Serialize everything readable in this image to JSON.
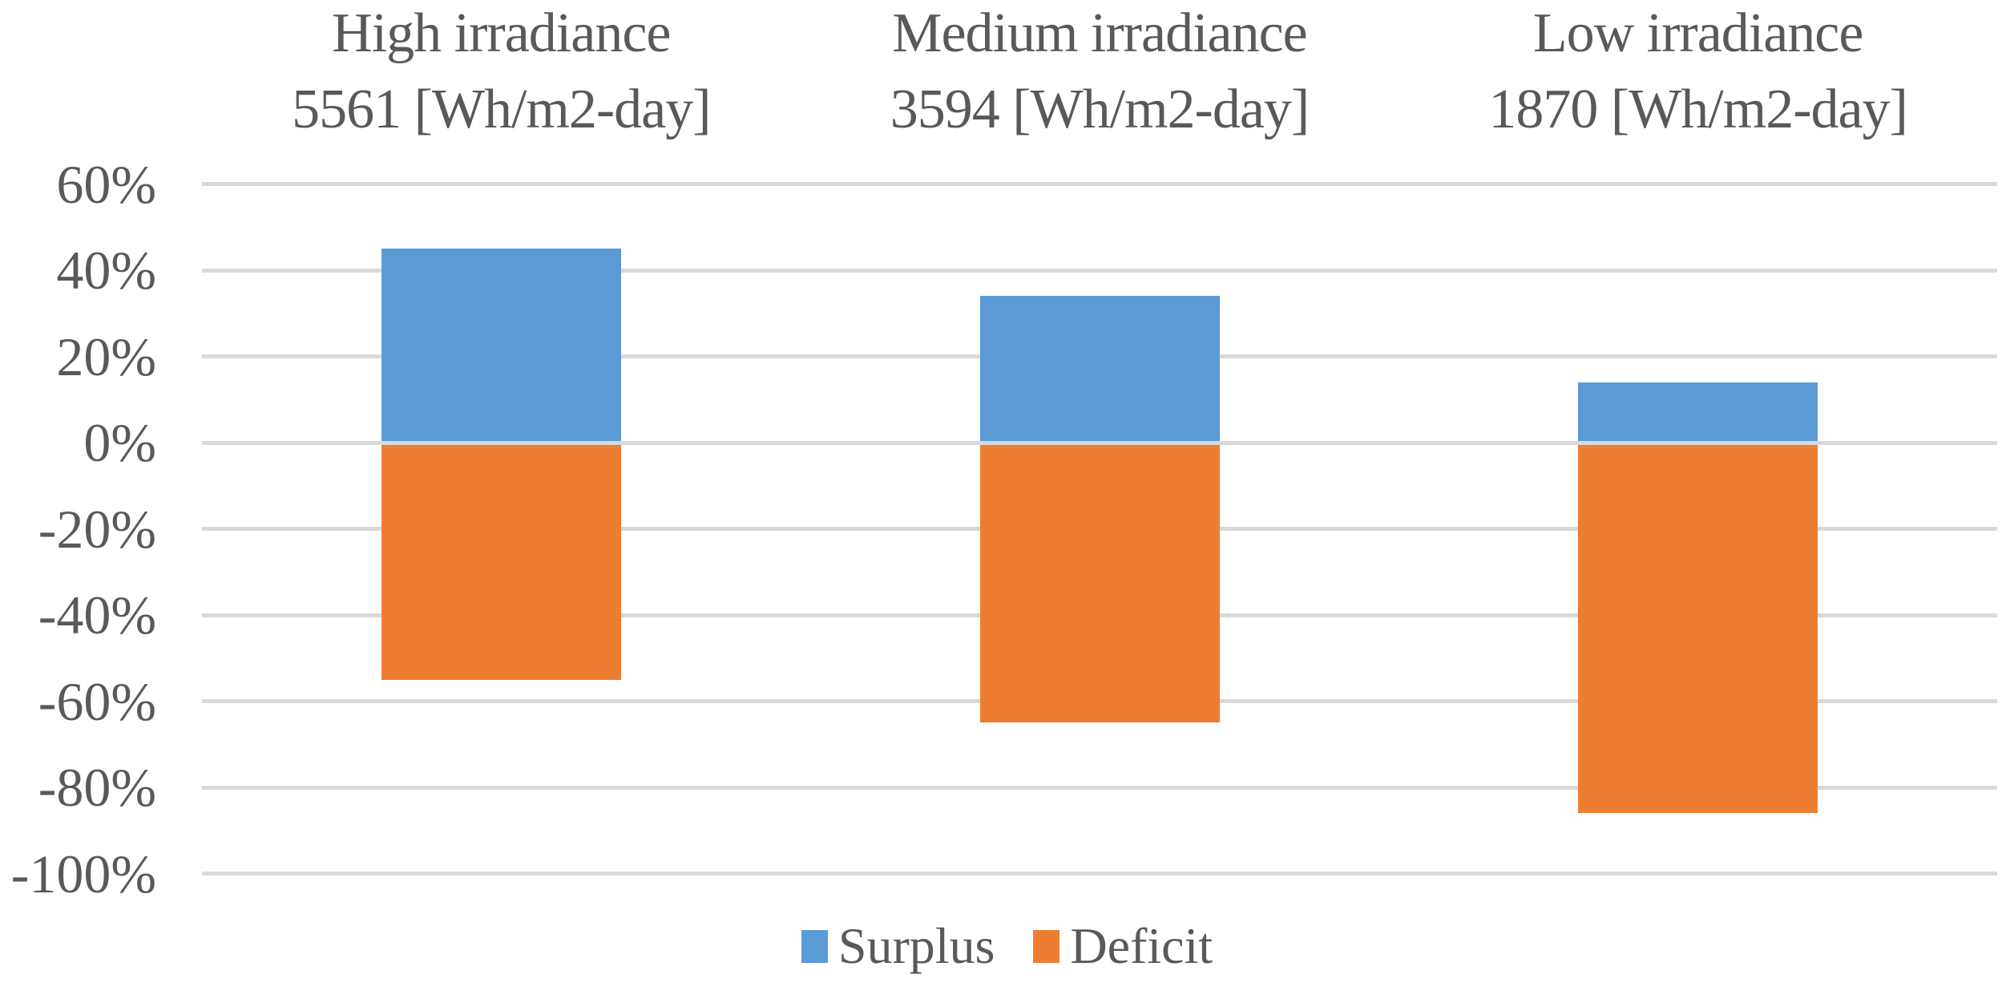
{
  "chart_data": {
    "type": "bar",
    "subtype": "diverging-stacked-column",
    "background": "#FFFFFF",
    "text_color": "#595959",
    "categories": [
      {
        "key": "high",
        "title_line1": "High irradiance",
        "title_line2": "5561 [Wh/m2-day]"
      },
      {
        "key": "medium",
        "title_line1": "Medium irradiance",
        "title_line2": "3594 [Wh/m2-day]"
      },
      {
        "key": "low",
        "title_line1": "Low irradiance",
        "title_line2": "1870 [Wh/m2-day]"
      }
    ],
    "series": [
      {
        "name": "Surplus",
        "color": "#5B9BD5",
        "values": [
          45,
          34,
          14
        ]
      },
      {
        "name": "Deficit",
        "color": "#ED7D31",
        "values": [
          -55,
          -65,
          -86
        ]
      }
    ],
    "y_axis": {
      "min": -100,
      "max": 60,
      "tick_step": 20,
      "unit": "%",
      "tick_labels": [
        "60%",
        "40%",
        "20%",
        "0%",
        "-20%",
        "-40%",
        "-60%",
        "-80%",
        "-100%"
      ]
    },
    "grid": {
      "show": true,
      "color": "#D9D9D9"
    },
    "legend": {
      "position": "bottom"
    }
  }
}
